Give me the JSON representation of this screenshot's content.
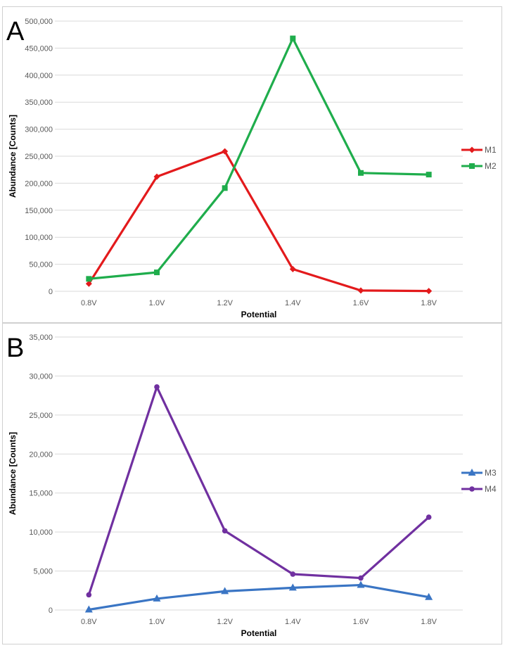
{
  "chart_data": [
    {
      "type": "line",
      "panel_label": "A",
      "title": "",
      "xlabel": "Potential",
      "ylabel": "Abundance [Counts]",
      "categories": [
        "0.8V",
        "1.0V",
        "1.2V",
        "1.4V",
        "1.6V",
        "1.8V"
      ],
      "ylim": [
        0,
        500000
      ],
      "yticks": [
        0,
        50000,
        100000,
        150000,
        200000,
        250000,
        300000,
        350000,
        400000,
        450000,
        500000
      ],
      "ytick_labels": [
        "0",
        "50,000",
        "100,000",
        "150,000",
        "200,000",
        "250,000",
        "300,000",
        "350,000",
        "400,000",
        "450,000",
        "500,000"
      ],
      "grid": true,
      "legend_position": "right",
      "series": [
        {
          "name": "M1",
          "color": "#e31a1c",
          "marker": "diamond",
          "values": [
            14000,
            212000,
            259000,
            41000,
            1500,
            500
          ]
        },
        {
          "name": "M2",
          "color": "#1fad4c",
          "marker": "square",
          "values": [
            23000,
            35000,
            191000,
            468000,
            219000,
            216000
          ]
        }
      ]
    },
    {
      "type": "line",
      "panel_label": "B",
      "title": "",
      "xlabel": "Potential",
      "ylabel": "Abundance [Counts]",
      "categories": [
        "0.8V",
        "1.0V",
        "1.2V",
        "1.4V",
        "1.6V",
        "1.8V"
      ],
      "ylim": [
        0,
        35000
      ],
      "yticks": [
        0,
        5000,
        10000,
        15000,
        20000,
        25000,
        30000,
        35000
      ],
      "ytick_labels": [
        "0",
        "5,000",
        "10,000",
        "15,000",
        "20,000",
        "25,000",
        "30,000",
        "35,000"
      ],
      "grid": true,
      "legend_position": "right",
      "series": [
        {
          "name": "M3",
          "color": "#3a75c4",
          "marker": "triangle",
          "values": [
            50,
            1450,
            2400,
            2850,
            3200,
            1650
          ]
        },
        {
          "name": "M4",
          "color": "#7030a0",
          "marker": "circle",
          "values": [
            1950,
            28600,
            10150,
            4600,
            4100,
            11900
          ]
        }
      ]
    }
  ]
}
